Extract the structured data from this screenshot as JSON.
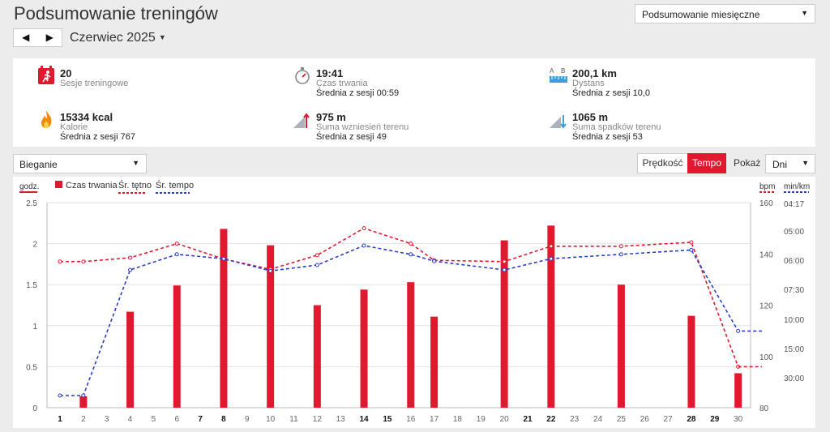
{
  "page": {
    "title": "Podsumowanie treningów"
  },
  "summary_select": {
    "value": "Podsumowanie miesięczne"
  },
  "nav": {
    "prev": "◀",
    "next": "▶",
    "month": "Czerwiec 2025"
  },
  "stats": [
    {
      "icon": "running-calendar-icon",
      "value": "20",
      "label": "Sesje treningowe",
      "avg": ""
    },
    {
      "icon": "stopwatch-icon",
      "value": "19:41",
      "label": "Czas trwania",
      "avg": "Średnia z sesji 00:59"
    },
    {
      "icon": "ruler-distance-icon",
      "value": "200,1 km",
      "label": "Dystans",
      "avg": "Średnia z sesji 10,0"
    },
    {
      "icon": "flame-icon",
      "value": "15334 kcal",
      "label": "Kalorie",
      "avg": "Średnia z sesji 767"
    },
    {
      "icon": "ascent-icon",
      "value": "975 m",
      "label": "Suma wzniesień terenu",
      "avg": "Średnia z sesji 49"
    },
    {
      "icon": "descent-icon",
      "value": "1065 m",
      "label": "Suma spadków terenu",
      "avg": "Średnia z sesji 53"
    }
  ],
  "sport_select": {
    "value": "Bieganie"
  },
  "toggle": {
    "speed": "Prędkość",
    "tempo": "Tempo",
    "active": "tempo"
  },
  "show": {
    "label": "Pokaż",
    "value": "Dni"
  },
  "colors": {
    "accent": "#e0192f",
    "tempo_line": "#2b3fc4",
    "hr_line": "#e0192f"
  },
  "chart_data": {
    "type": "bar",
    "x": [
      1,
      2,
      3,
      4,
      5,
      6,
      7,
      8,
      9,
      10,
      11,
      12,
      13,
      14,
      15,
      16,
      17,
      18,
      19,
      20,
      21,
      22,
      23,
      24,
      25,
      26,
      27,
      28,
      29,
      30
    ],
    "bold_days": [
      1,
      7,
      8,
      14,
      15,
      21,
      22,
      28,
      29
    ],
    "left_axis": {
      "unit": "godz.",
      "ticks": [
        "0",
        "0.5",
        "1",
        "1.5",
        "2",
        "2.5"
      ],
      "range": [
        0,
        2.5
      ]
    },
    "right_axis_hr": {
      "unit": "bpm",
      "ticks": [
        "80",
        "100",
        "120",
        "140",
        "160"
      ],
      "range": [
        80,
        160
      ]
    },
    "right_axis_tempo": {
      "unit": "min/km",
      "ticks": [
        "04:17",
        "05:00",
        "06:00",
        "07:30",
        "10:00",
        "15:00",
        "30:00"
      ]
    },
    "legend": [
      "Czas trwania",
      "Śr. tętno",
      "Śr. tempo"
    ],
    "series": [
      {
        "name": "Czas trwania",
        "kind": "bar",
        "points": [
          [
            2,
            0.14
          ],
          [
            4,
            1.17
          ],
          [
            6,
            1.49
          ],
          [
            8,
            2.18
          ],
          [
            10,
            1.98
          ],
          [
            12,
            1.25
          ],
          [
            14,
            1.44
          ],
          [
            16,
            1.53
          ],
          [
            17,
            1.11
          ],
          [
            20,
            2.04
          ],
          [
            22,
            2.22
          ],
          [
            25,
            1.5
          ],
          [
            28,
            1.12
          ],
          [
            30,
            0.42
          ]
        ]
      },
      {
        "name": "Śr. tętno",
        "kind": "line",
        "unit": "bpm",
        "points": [
          [
            1,
            137
          ],
          [
            2,
            137
          ],
          [
            4,
            138.5
          ],
          [
            6,
            144
          ],
          [
            8,
            138
          ],
          [
            10,
            134
          ],
          [
            12,
            139.5
          ],
          [
            14,
            150
          ],
          [
            16,
            144
          ],
          [
            17,
            137.5
          ],
          [
            20,
            137
          ],
          [
            22,
            143
          ],
          [
            25,
            143
          ],
          [
            28,
            144.5
          ],
          [
            30,
            96
          ]
        ]
      },
      {
        "name": "Śr. tempo",
        "kind": "line",
        "unit": "min/km",
        "points": [
          [
            1,
            "30:00+"
          ],
          [
            2,
            "30:00+"
          ],
          [
            4,
            "06:30"
          ],
          [
            6,
            "05:48"
          ],
          [
            8,
            "05:57"
          ],
          [
            10,
            "06:33"
          ],
          [
            12,
            "06:15"
          ],
          [
            14,
            "05:30"
          ],
          [
            16,
            "05:48"
          ],
          [
            17,
            "06:03"
          ],
          [
            20,
            "06:30"
          ],
          [
            22,
            "05:57"
          ],
          [
            25,
            "05:48"
          ],
          [
            28,
            "05:39"
          ],
          [
            30,
            "12:00"
          ]
        ]
      }
    ]
  }
}
